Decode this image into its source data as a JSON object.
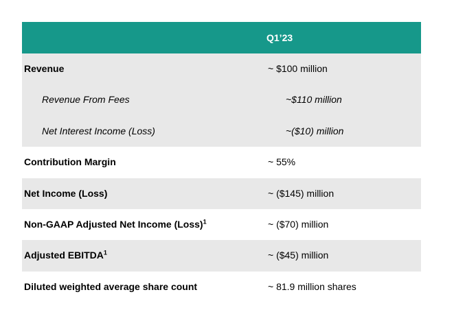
{
  "header": {
    "period": "Q1’23"
  },
  "rows": [
    {
      "label": "Revenue",
      "sup": "",
      "value": "~ $100 million"
    },
    {
      "label": "Revenue From Fees",
      "sup": "",
      "value": "~$110 million"
    },
    {
      "label": "Net Interest Income (Loss)",
      "sup": "",
      "value": "~($10) million"
    },
    {
      "label": "Contribution Margin",
      "sup": "",
      "value": "~ 55%"
    },
    {
      "label": "Net Income (Loss)",
      "sup": "",
      "value": "~ ($145) million"
    },
    {
      "label": "Non-GAAP Adjusted Net Income (Loss)",
      "sup": "1",
      "value": "~ ($70) million"
    },
    {
      "label": "Adjusted EBITDA",
      "sup": "1",
      "value": "~ ($45) million"
    },
    {
      "label": "Diluted weighted average share count",
      "sup": "",
      "value": "~ 81.9 million shares"
    }
  ],
  "colors": {
    "header_bg": "#16988a",
    "row_shade": "#e8e8e8"
  }
}
